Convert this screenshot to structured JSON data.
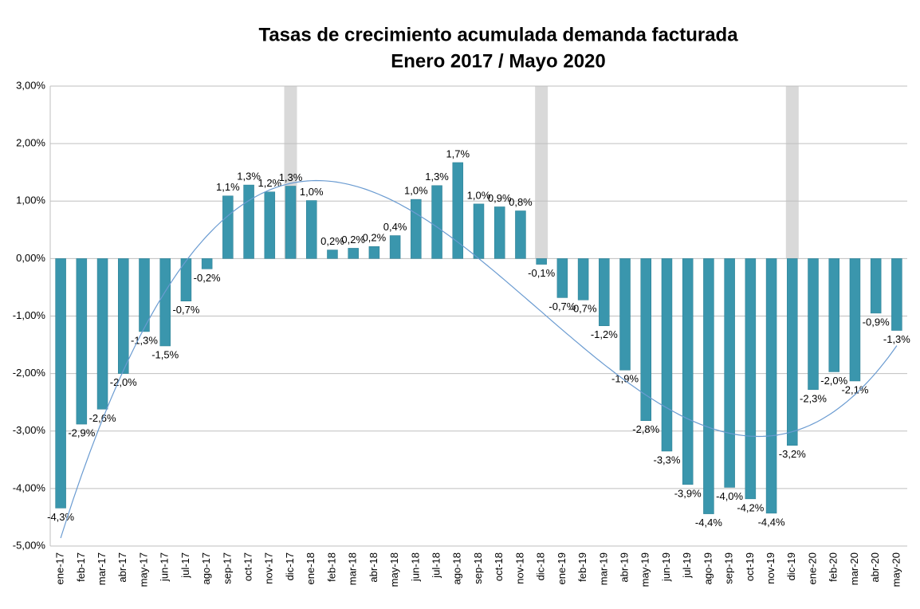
{
  "chart_data": {
    "type": "bar",
    "title": "Tasas de crecimiento acumulada demanda facturada",
    "subtitle": "Enero 2017 /  Mayo 2020",
    "categories": [
      "ene-17",
      "feb-17",
      "mar-17",
      "abr-17",
      "may-17",
      "jun-17",
      "jul-17",
      "ago-17",
      "sep-17",
      "oct-17",
      "nov-17",
      "dic-17",
      "ene-18",
      "feb-18",
      "mar-18",
      "abr-18",
      "may-18",
      "jun-18",
      "jul-18",
      "ago-18",
      "sep-18",
      "oct-18",
      "nov-18",
      "dic-18",
      "ene-19",
      "feb-19",
      "mar-19",
      "abr-19",
      "may-19",
      "jun-19",
      "jul-19",
      "ago-19",
      "sep-19",
      "oct-19",
      "nov-19",
      "dic-19",
      "ene-20",
      "feb-20",
      "mar-20",
      "abr-20",
      "may-20"
    ],
    "values": [
      -4.34,
      -2.88,
      -2.62,
      -2.0,
      -1.27,
      -1.52,
      -0.74,
      -0.18,
      1.09,
      1.28,
      1.16,
      1.26,
      1.01,
      0.15,
      0.18,
      0.21,
      0.4,
      1.03,
      1.27,
      1.67,
      0.95,
      0.9,
      0.83,
      -0.1,
      -0.68,
      -0.72,
      -1.17,
      -1.94,
      -2.82,
      -3.35,
      -3.93,
      -4.44,
      -3.98,
      -4.18,
      -4.43,
      -3.25,
      -2.28,
      -1.97,
      -2.13,
      -0.95,
      -1.25
    ],
    "value_labels": [
      "-4,3%",
      "-2,9%",
      "-2,6%",
      "-2,0%",
      "-1,3%",
      "-1,5%",
      "-0,7%",
      "-0,2%",
      "1,1%",
      "1,3%",
      "1,2%",
      "1,3%",
      "1,0%",
      "0,2%",
      "0,2%",
      "0,2%",
      "0,4%",
      "1,0%",
      "1,3%",
      "1,7%",
      "1,0%",
      "0,9%",
      "0,8%",
      "-0,1%",
      "-0,7%",
      "-0,7%",
      "-1,2%",
      "-1,9%",
      "-2,8%",
      "-3,3%",
      "-3,9%",
      "-4,4%",
      "-4,0%",
      "-4,2%",
      "-4,4%",
      "-3,2%",
      "-2,3%",
      "-2,0%",
      "-2,1%",
      "-0,9%",
      "-1,3%"
    ],
    "color": "#3a96ad",
    "ylim": [
      -5,
      3
    ],
    "yticks": [
      {
        "value": -5,
        "label": "-5,00%"
      },
      {
        "value": -4,
        "label": "-4,00%"
      },
      {
        "value": -3,
        "label": "-3,00%"
      },
      {
        "value": -2,
        "label": "-2,00%"
      },
      {
        "value": -1,
        "label": "-1,00%"
      },
      {
        "value": 0,
        "label": "0,00%"
      },
      {
        "value": 1,
        "label": "1,00%"
      },
      {
        "value": 2,
        "label": "2,00%"
      },
      {
        "value": 3,
        "label": "3,00%"
      }
    ],
    "grid": true,
    "trendline": true
  }
}
